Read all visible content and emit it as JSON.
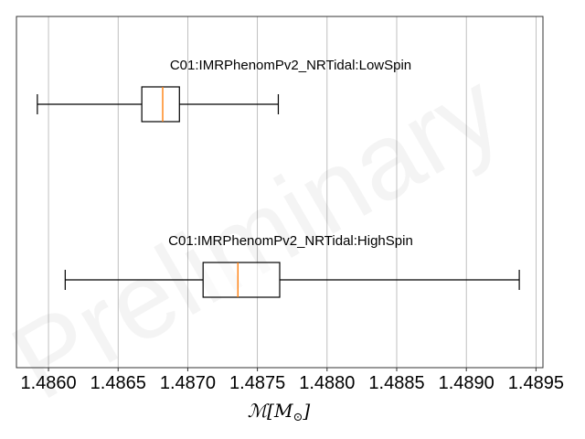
{
  "chart_data": {
    "type": "boxplot",
    "orientation": "horizontal",
    "xlim": [
      1.48577,
      1.48955
    ],
    "xticks": [
      1.486,
      1.4865,
      1.487,
      1.4875,
      1.488,
      1.4885,
      1.489,
      1.4895
    ],
    "xtick_labels": [
      "1.4860",
      "1.4865",
      "1.4870",
      "1.4875",
      "1.4880",
      "1.4885",
      "1.4890",
      "1.4895"
    ],
    "xlabel_main": "ℳ[M",
    "xlabel_sub": "⊙",
    "xlabel_close": "]",
    "grid": "vertical",
    "watermark": "Preliminary",
    "colors": {
      "median": "#ff7f0e",
      "box": "#000000",
      "grid": "#b0b0b0",
      "axes": "#333333"
    },
    "series": [
      {
        "name": "C01:IMRPhenomPv2_NRTidal:LowSpin",
        "whisker_low": 1.48592,
        "q1": 1.48667,
        "median": 1.48682,
        "q3": 1.48694,
        "whisker_high": 1.48765
      },
      {
        "name": "C01:IMRPhenomPv2_NRTidal:HighSpin",
        "whisker_low": 1.48612,
        "q1": 1.48711,
        "median": 1.48736,
        "q3": 1.48766,
        "whisker_high": 1.48938
      }
    ]
  }
}
